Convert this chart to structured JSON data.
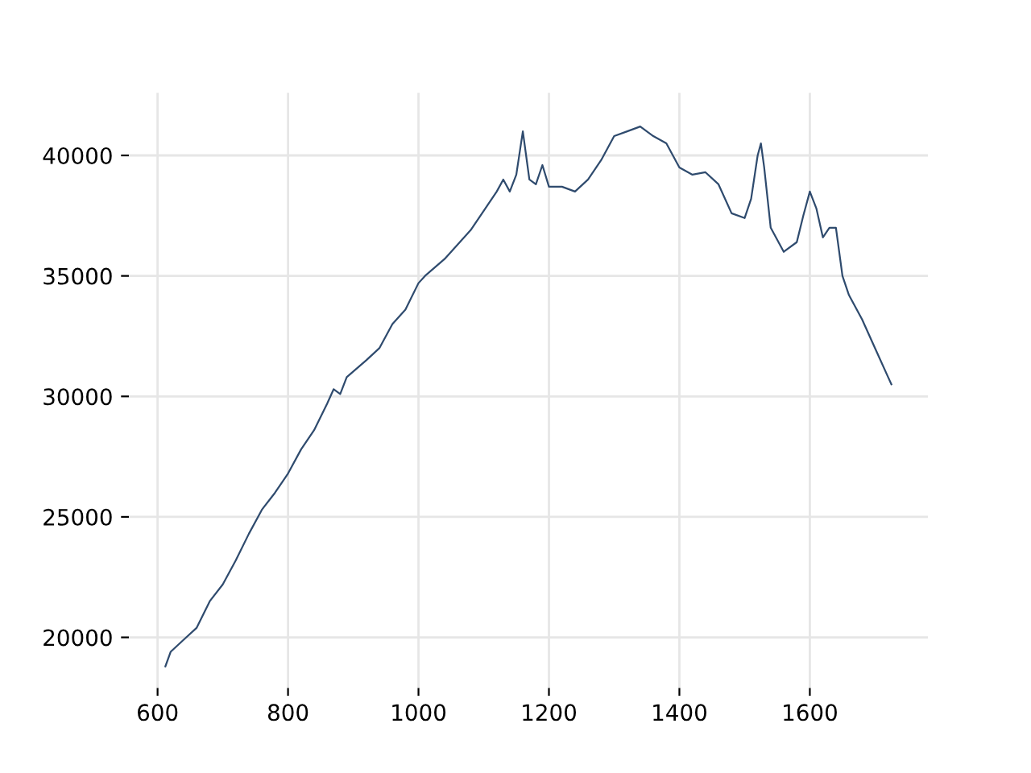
{
  "chart_data": {
    "type": "line",
    "grid": true,
    "xlim": [
      556,
      1781
    ],
    "ylim": [
      17900,
      42600
    ],
    "xticks": [
      600,
      800,
      1000,
      1200,
      1400,
      1600
    ],
    "yticks": [
      20000,
      25000,
      30000,
      35000,
      40000
    ],
    "series": [
      {
        "color": "#2f4b6e",
        "x": [
          612,
          620,
          640,
          660,
          680,
          700,
          720,
          740,
          760,
          780,
          800,
          820,
          840,
          860,
          870,
          880,
          890,
          920,
          940,
          960,
          980,
          1000,
          1010,
          1040,
          1060,
          1080,
          1100,
          1120,
          1130,
          1140,
          1150,
          1160,
          1165,
          1170,
          1180,
          1190,
          1200,
          1220,
          1240,
          1260,
          1280,
          1300,
          1320,
          1340,
          1360,
          1380,
          1400,
          1420,
          1440,
          1460,
          1480,
          1500,
          1510,
          1520,
          1525,
          1530,
          1540,
          1560,
          1580,
          1590,
          1600,
          1610,
          1620,
          1630,
          1640,
          1650,
          1660,
          1680,
          1700,
          1720,
          1725
        ],
        "values": [
          18800,
          19400,
          19900,
          20400,
          21500,
          22200,
          23200,
          24300,
          25300,
          26000,
          26800,
          27800,
          28600,
          29700,
          30300,
          30100,
          30800,
          31500,
          32000,
          33000,
          33600,
          34700,
          35000,
          35700,
          36300,
          36900,
          37700,
          38500,
          39000,
          38500,
          39200,
          41000,
          40000,
          39000,
          38800,
          39600,
          38700,
          38700,
          38500,
          39000,
          39800,
          40800,
          41000,
          41200,
          40800,
          40500,
          39500,
          39200,
          39300,
          38800,
          37600,
          37400,
          38200,
          40000,
          40500,
          39500,
          37000,
          36000,
          36400,
          37500,
          38500,
          37800,
          36600,
          37000,
          37000,
          35000,
          34200,
          33200,
          32000,
          30800,
          30500
        ]
      }
    ]
  }
}
